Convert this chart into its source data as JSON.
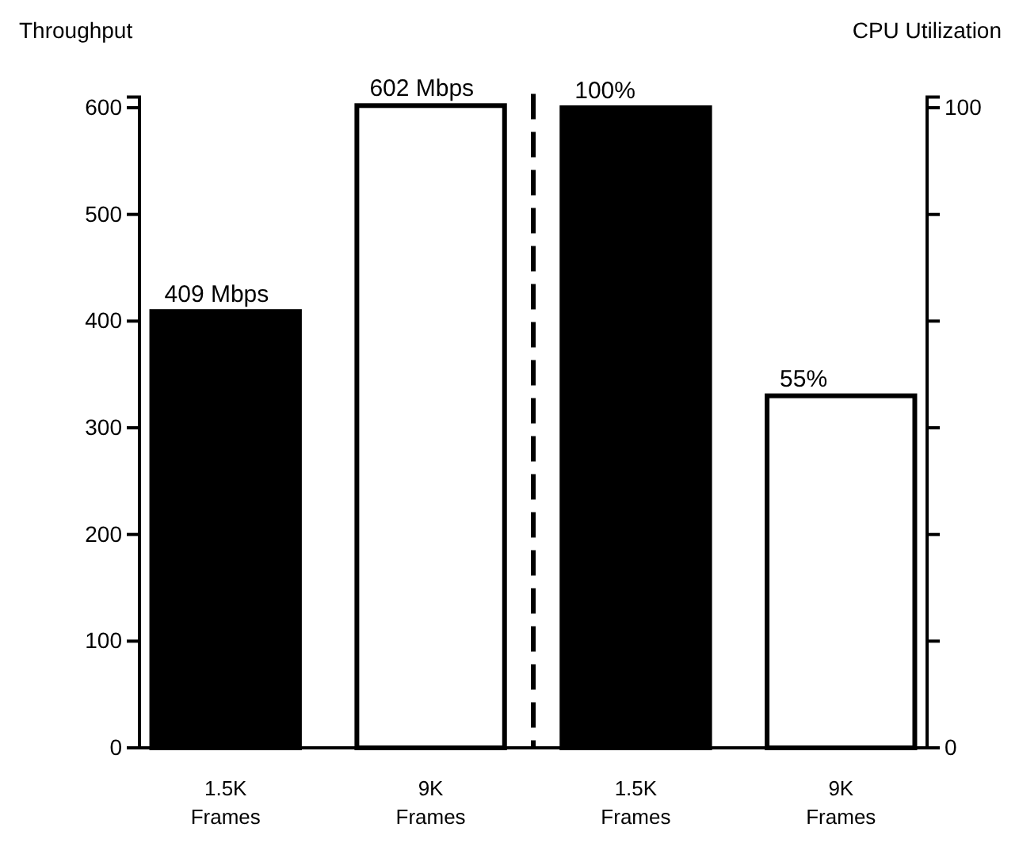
{
  "chart_data": {
    "type": "bar",
    "ylabel": "Throughput",
    "y2label": "CPU Utilization",
    "categories": [
      "1.5K Frames",
      "9K Frames",
      "1.5K Frames",
      "9K Frames"
    ],
    "series": [
      {
        "colors": [
          "#000000",
          "#ffffff",
          null,
          null
        ],
        "values": [
          409,
          602,
          null,
          null
        ],
        "value_labels": [
          "409 Mbps",
          "602 Mbps",
          null,
          null
        ]
      },
      {
        "axis": "y2",
        "colors": [
          null,
          null,
          "#000000",
          "#ffffff"
        ],
        "values": [
          null,
          null,
          100,
          55
        ],
        "value_labels": [
          null,
          null,
          "100%",
          "55%"
        ]
      }
    ],
    "ylim": [
      0,
      610
    ],
    "yticks": [
      0,
      100,
      200,
      300,
      400,
      500,
      600
    ],
    "y2lim": [
      0,
      101.67
    ],
    "y2ticks": [
      0,
      {
        "value": 16.67,
        "label": null
      },
      {
        "value": 33.33,
        "label": null
      },
      {
        "value": 50,
        "label": null
      },
      {
        "value": 66.67,
        "label": null
      },
      {
        "value": 83.33,
        "label": null
      },
      100
    ],
    "grid": false
  }
}
